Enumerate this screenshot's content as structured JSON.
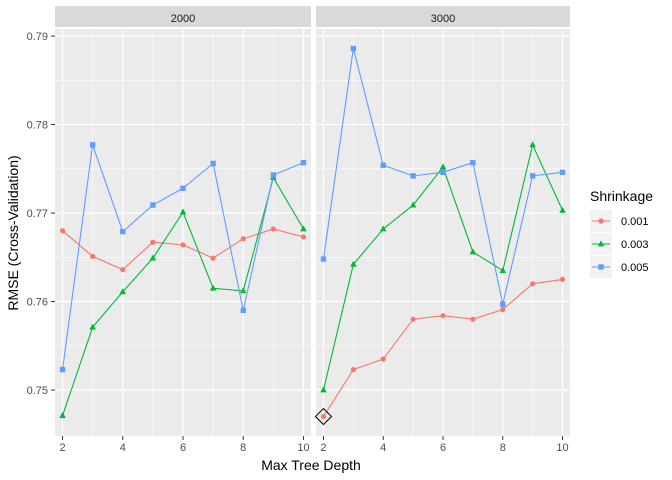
{
  "chart_data": {
    "type": "line",
    "facet_variable": "n.trees",
    "facets": [
      "2000",
      "3000"
    ],
    "x": [
      2,
      3,
      4,
      5,
      6,
      7,
      8,
      9,
      10
    ],
    "xticks": [
      2,
      4,
      6,
      8,
      10
    ],
    "xlim": [
      1.75,
      10.25
    ],
    "ylim": [
      0.7448,
      0.7908
    ],
    "yticks": [
      0.75,
      0.76,
      0.77,
      0.78,
      0.79
    ],
    "xlabel": "Max Tree Depth",
    "ylabel": "RMSE (Cross-Validation)",
    "legend_title": "Shrinkage",
    "legend_position": "right",
    "grid": true,
    "series": [
      {
        "name": "0.001",
        "color": "#F8766D",
        "marker": "circle",
        "values": {
          "2000": [
            0.768,
            0.7651,
            0.7636,
            0.7667,
            0.7664,
            0.7649,
            0.7671,
            0.7682,
            0.7673
          ],
          "3000": [
            0.747,
            0.7523,
            0.7535,
            0.758,
            0.7584,
            0.758,
            0.7591,
            0.762,
            0.7625
          ]
        }
      },
      {
        "name": "0.003",
        "color": "#00BA38",
        "marker": "triangle",
        "values": {
          "2000": [
            0.7471,
            0.7571,
            0.7611,
            0.7649,
            0.7701,
            0.7615,
            0.7612,
            0.774,
            0.7682
          ],
          "3000": [
            0.75,
            0.7642,
            0.7682,
            0.7709,
            0.7752,
            0.7656,
            0.7635,
            0.7777,
            0.7703
          ]
        }
      },
      {
        "name": "0.005",
        "color": "#619CFF",
        "marker": "square",
        "values": {
          "2000": [
            0.7523,
            0.7777,
            0.7679,
            0.7709,
            0.7728,
            0.7756,
            0.759,
            0.7743,
            0.7757
          ],
          "3000": [
            0.7648,
            0.7886,
            0.7754,
            0.7742,
            0.7746,
            0.7757,
            0.7597,
            0.7742,
            0.7746
          ]
        }
      }
    ],
    "highlight": {
      "facet": "3000",
      "x": 2,
      "y": 0.747,
      "marker": "diamond-outline"
    }
  }
}
